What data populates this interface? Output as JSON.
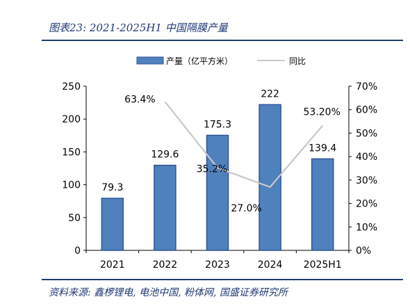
{
  "figure": {
    "title": "图表23:  2021-2025H1 中国隔膜产量",
    "source": "资料来源:  鑫椤锂电,  电池中国,  粉体网,  国盛证券研究所"
  },
  "chart_data": {
    "type": "bar",
    "categories": [
      "2021",
      "2022",
      "2023",
      "2024",
      "2025H1"
    ],
    "series": [
      {
        "name": "产量（亿平方米）",
        "type": "bar",
        "axis": "left",
        "values": [
          79.3,
          129.6,
          175.3,
          222,
          139.4
        ],
        "labels": [
          "79.3",
          "129.6",
          "175.3",
          "222",
          "139.4"
        ]
      },
      {
        "name": "同比",
        "type": "line",
        "axis": "right",
        "values": [
          null,
          63.4,
          35.2,
          27.0,
          53.2
        ],
        "labels": [
          "",
          "63.4%",
          "35.2%",
          "27.0%",
          "53.20%"
        ]
      }
    ],
    "left_axis": {
      "ylim": [
        0,
        250
      ],
      "ticks": [
        "0",
        "50",
        "100",
        "150",
        "200",
        "250"
      ]
    },
    "right_axis": {
      "ylim": [
        0,
        70
      ],
      "ticks": [
        "0%",
        "10%",
        "20%",
        "30%",
        "40%",
        "50%",
        "60%",
        "70%"
      ]
    },
    "grid": false,
    "legend_position": "top",
    "colors": {
      "bar": "#4f81bd",
      "bar_border": "#2f5597",
      "line": "#c8c8c8",
      "title": "#1f3a73"
    }
  }
}
